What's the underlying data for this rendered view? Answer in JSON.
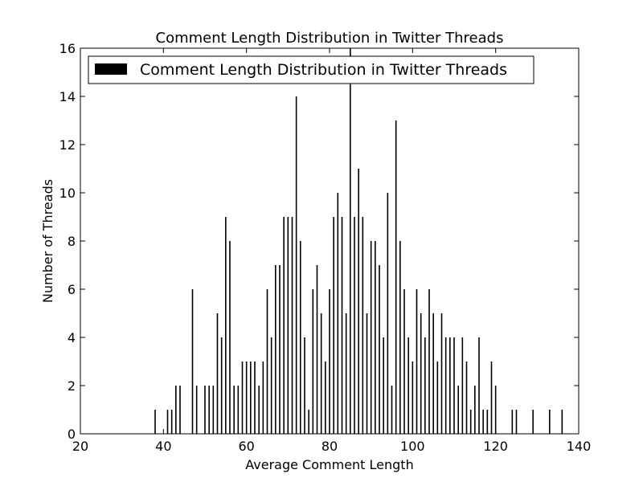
{
  "chart_data": {
    "type": "bar",
    "title": "Comment Length Distribution in Twitter Threads",
    "xlabel": "Average Comment Length",
    "ylabel": "Number of Threads",
    "xlim": [
      20,
      140
    ],
    "ylim": [
      0,
      16
    ],
    "xticks": [
      20,
      40,
      60,
      80,
      100,
      120,
      140
    ],
    "yticks": [
      0,
      2,
      4,
      6,
      8,
      10,
      12,
      14,
      16
    ],
    "grid": false,
    "legend": {
      "position": "top-left",
      "entries": [
        "Comment Length Distribution in Twitter Threads"
      ]
    },
    "series": [
      {
        "name": "Comment Length Distribution in Twitter Threads",
        "color": "#000000",
        "x": [
          38,
          41,
          42,
          43,
          44,
          47,
          48,
          50,
          51,
          52,
          53,
          54,
          55,
          56,
          57,
          58,
          59,
          60,
          61,
          62,
          63,
          64,
          65,
          66,
          67,
          68,
          69,
          70,
          71,
          72,
          73,
          74,
          75,
          76,
          77,
          78,
          79,
          80,
          81,
          82,
          83,
          84,
          85,
          86,
          87,
          88,
          89,
          90,
          91,
          92,
          93,
          94,
          95,
          96,
          97,
          98,
          99,
          100,
          101,
          102,
          103,
          104,
          105,
          106,
          107,
          108,
          109,
          110,
          111,
          112,
          113,
          114,
          115,
          116,
          117,
          118,
          119,
          120,
          124,
          125,
          129,
          133,
          136
        ],
        "values": [
          1,
          1,
          1,
          2,
          2,
          6,
          2,
          2,
          2,
          2,
          5,
          4,
          9,
          8,
          2,
          2,
          3,
          3,
          3,
          3,
          2,
          3,
          6,
          4,
          7,
          7,
          9,
          9,
          9,
          14,
          8,
          4,
          1,
          6,
          7,
          5,
          3,
          6,
          9,
          10,
          9,
          5,
          16,
          9,
          11,
          9,
          5,
          8,
          8,
          7,
          4,
          10,
          2,
          13,
          8,
          6,
          4,
          3,
          6,
          5,
          4,
          6,
          5,
          3,
          5,
          4,
          4,
          4,
          2,
          4,
          3,
          1,
          2,
          4,
          1,
          1,
          3,
          2,
          1,
          1,
          1,
          1,
          1
        ]
      }
    ]
  }
}
